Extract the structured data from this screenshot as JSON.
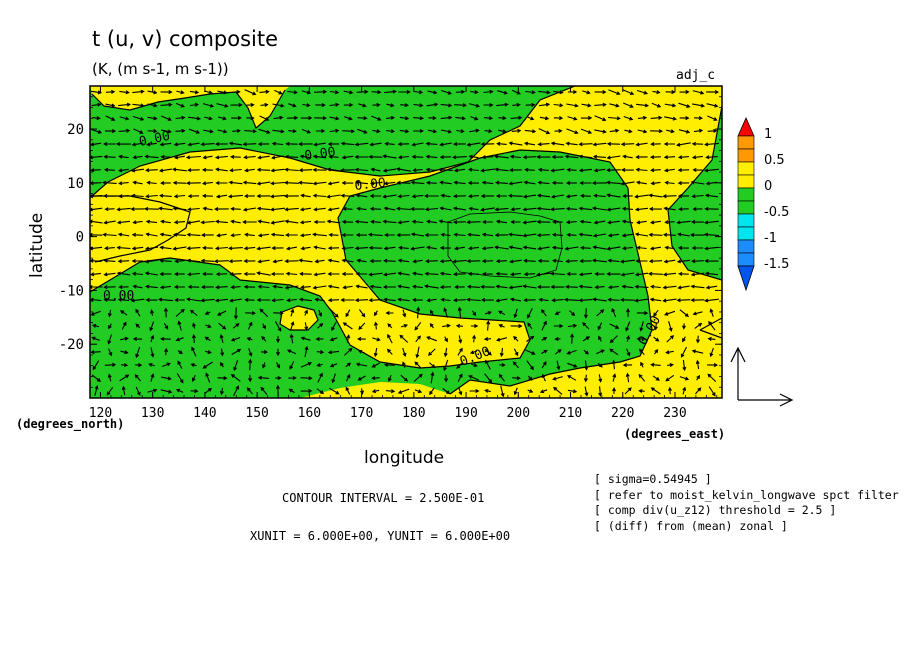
{
  "header": {
    "title": "t (u, v) composite",
    "units": "(K, (m s-1, m s-1))",
    "tag": "adj_c"
  },
  "chart_data": {
    "type": "heatmap",
    "subtype": "contour-fill with vector overlay",
    "xlabel": "longitude",
    "ylabel": "latitude",
    "x_unit_label": "(degrees_east)",
    "y_unit_label": "(degrees_north)",
    "xlim": [
      118,
      239
    ],
    "ylim": [
      -30,
      28
    ],
    "x_ticks": [
      "120",
      "130",
      "140",
      "150",
      "160",
      "170",
      "180",
      "190",
      "200",
      "210",
      "220",
      "230"
    ],
    "y_ticks": [
      "20",
      "10",
      "0",
      "-10",
      "-20"
    ],
    "contour_label": "0.00",
    "colorbar": {
      "labels": [
        "1",
        "0.5",
        "0",
        "-0.5",
        "-1",
        "-1.5"
      ],
      "colors": [
        "#ff0000",
        "#ff9900",
        "#ffee00",
        "#22cc22",
        "#00e5ee",
        "#1e8cff",
        "#0055ee"
      ],
      "levels": [
        1.25,
        1,
        0.75,
        0.5,
        0.25,
        0,
        -0.25,
        -0.5,
        -0.75,
        -1,
        -1.25,
        -1.5,
        -1.75
      ],
      "level_colors": [
        "#ff0000",
        "#ff9900",
        "#ff9900",
        "#ffee00",
        "#ffee00",
        "#22cc22",
        "#22cc22",
        "#00e5ee",
        "#00e5ee",
        "#1e8cff",
        "#1e8cff",
        "#0055ee"
      ]
    },
    "fill_colors": {
      "positive": "#ffee00",
      "negative": "#22cc22",
      "line": "#000000"
    },
    "contour_interval": "CONTOUR INTERVAL = 2.500E-01",
    "vector_units": "XUNIT = 6.000E+00, YUNIT = 6.000E+00",
    "notes": [
      "[ sigma=0.54945 ]",
      "[ refer to moist_kelvin_longwave spct filter ]",
      "[ comp div(u_z12) threshold = 2.5 ]",
      "[ (diff) from (mean) zonal ]"
    ]
  }
}
